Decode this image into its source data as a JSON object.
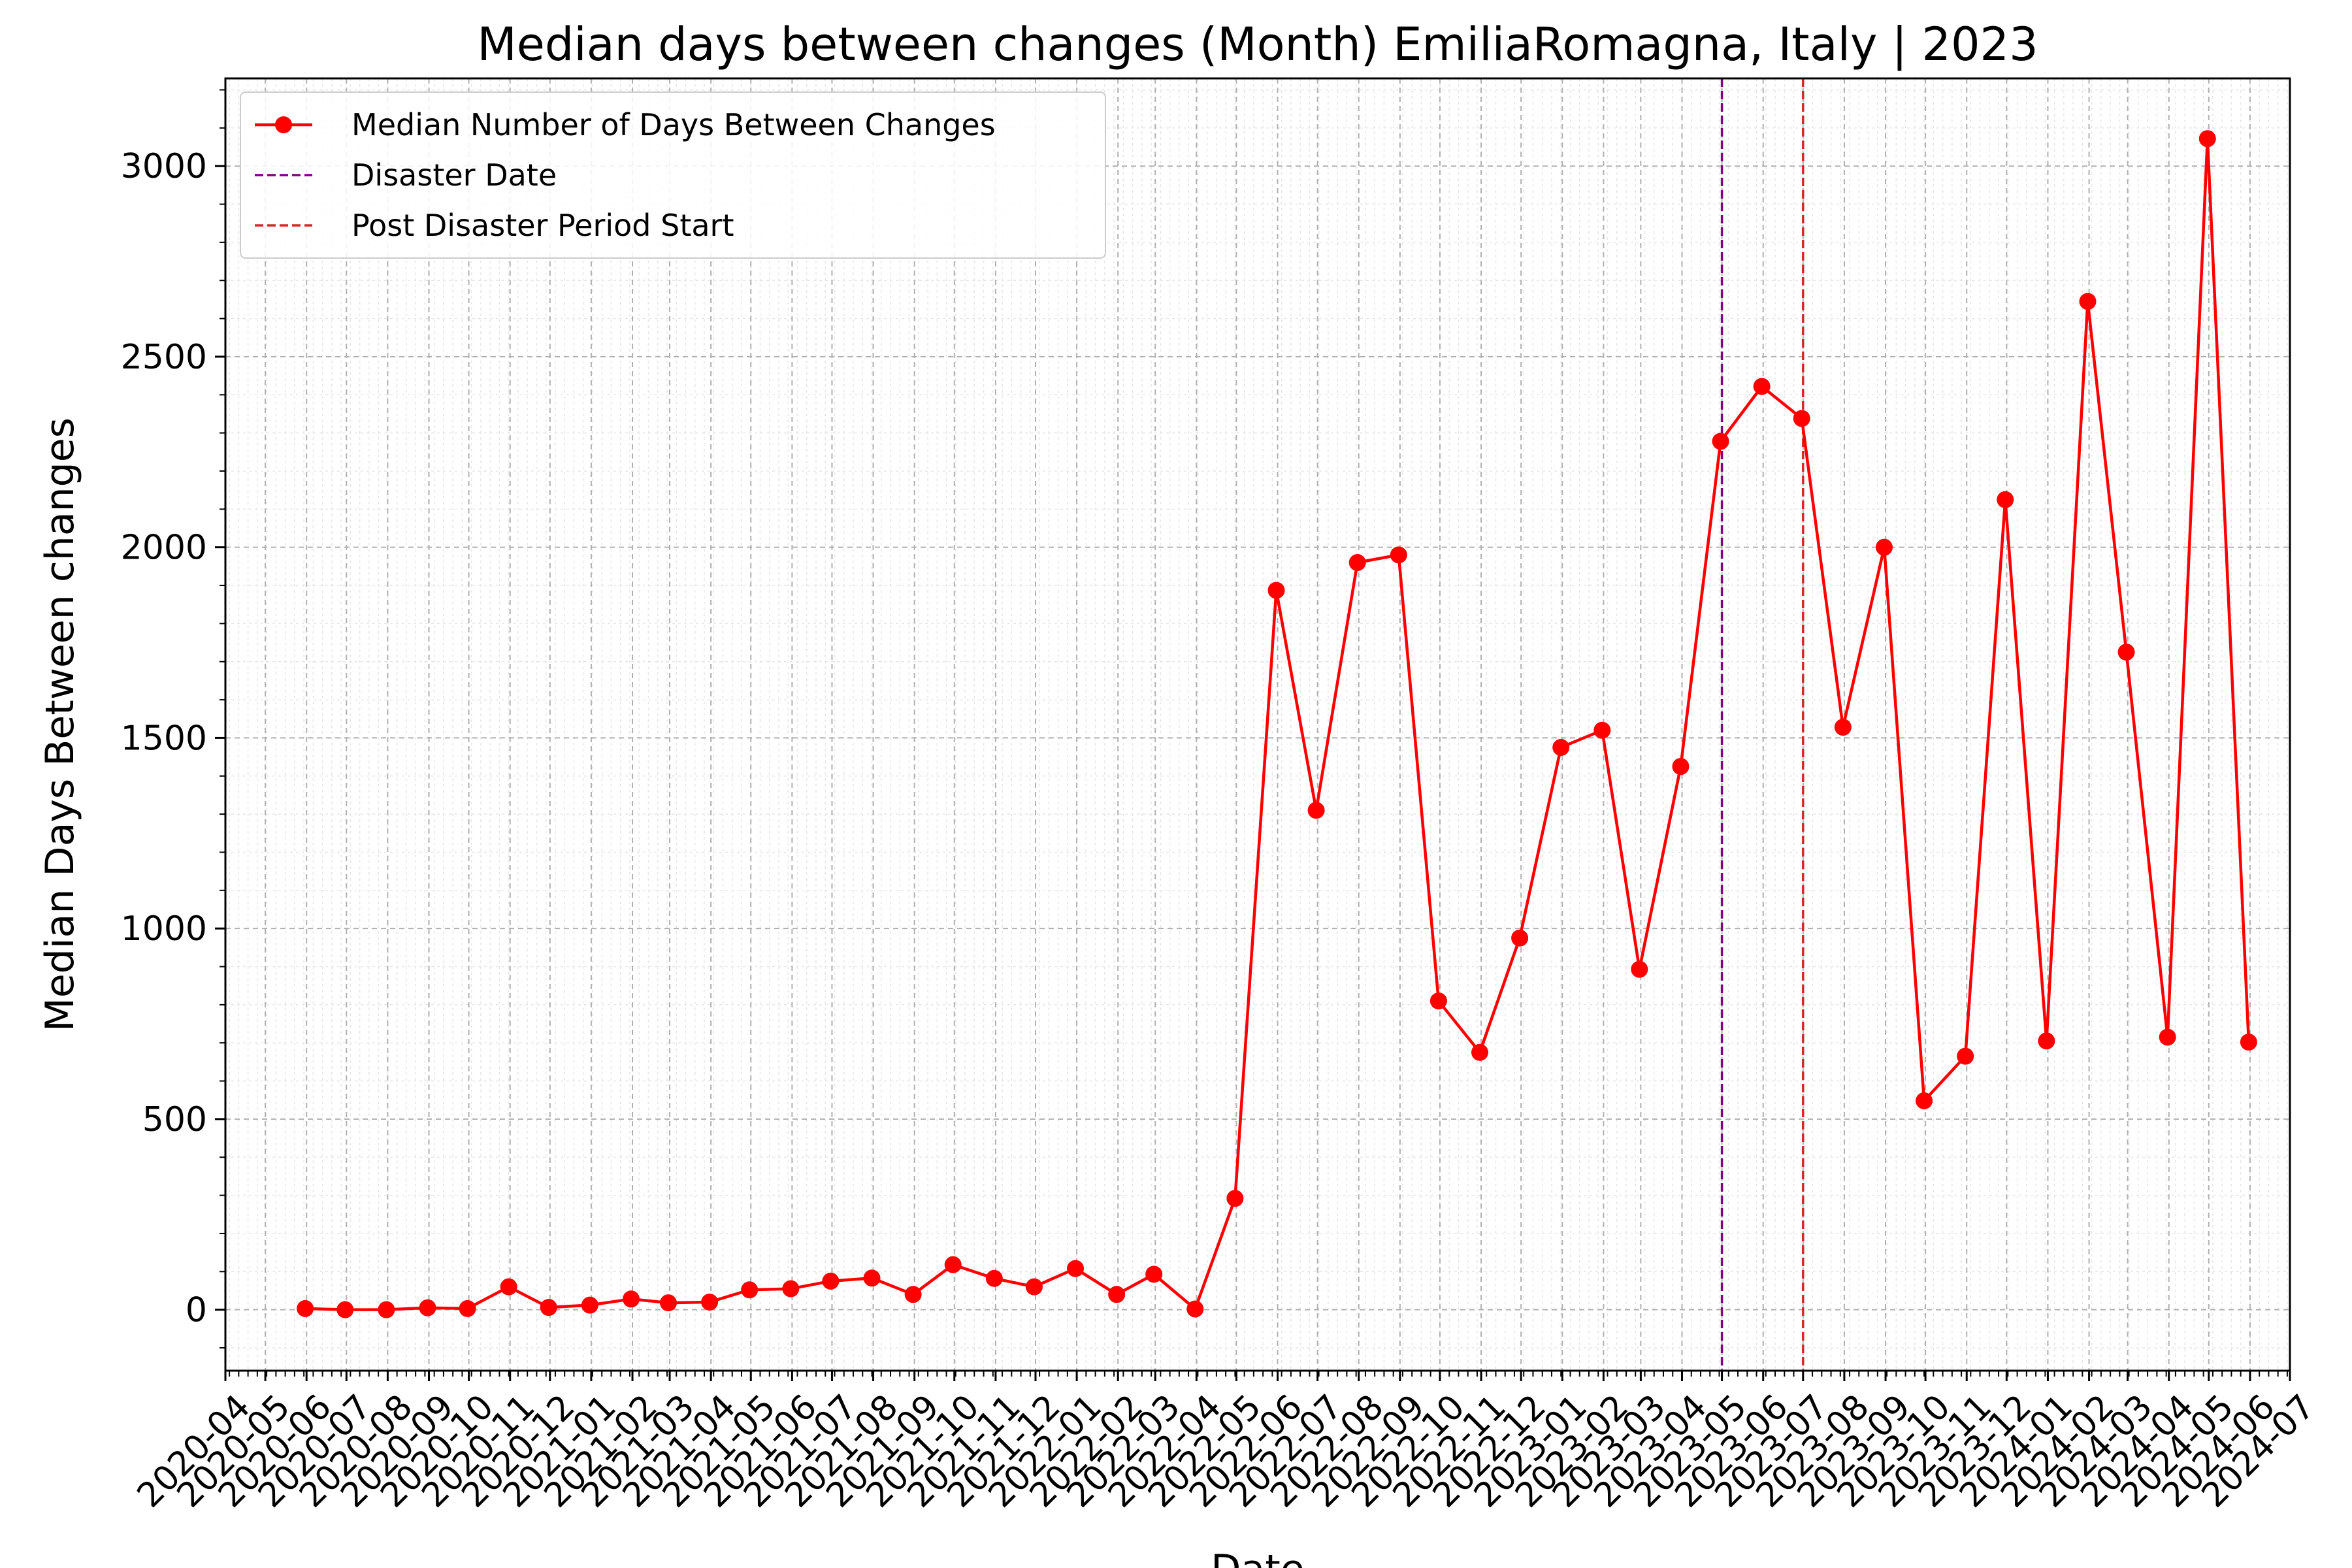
{
  "chart_data": {
    "type": "line",
    "title": "Median days between changes (Month) EmiliaRomagna, Italy | 2023",
    "xlabel": "Date",
    "ylabel": "Median Days Between changes",
    "ylim": [
      -160,
      3230
    ],
    "yticks": [
      0,
      500,
      1000,
      1500,
      2000,
      2500,
      3000
    ],
    "xlim": [
      "2020-04-01",
      "2024-07-01"
    ],
    "xticks": [
      "2020-04",
      "2020-05",
      "2020-06",
      "2020-07",
      "2020-08",
      "2020-09",
      "2020-10",
      "2020-11",
      "2020-12",
      "2021-01",
      "2021-02",
      "2021-03",
      "2021-04",
      "2021-05",
      "2021-06",
      "2021-07",
      "2021-08",
      "2021-09",
      "2021-10",
      "2021-11",
      "2021-12",
      "2022-01",
      "2022-02",
      "2022-03",
      "2022-04",
      "2022-05",
      "2022-06",
      "2022-07",
      "2022-08",
      "2022-09",
      "2022-10",
      "2022-11",
      "2022-12",
      "2023-01",
      "2023-02",
      "2023-03",
      "2023-04",
      "2023-05",
      "2023-06",
      "2023-07",
      "2023-08",
      "2023-09",
      "2023-10",
      "2023-11",
      "2023-12",
      "2024-01",
      "2024-02",
      "2024-03",
      "2024-04",
      "2024-05",
      "2024-06",
      "2024-07"
    ],
    "grid": true,
    "legend_position": "top-left",
    "series": [
      {
        "name": "Median Number of Days Between Changes",
        "color": "#ff0000",
        "x": [
          "2020-05-31",
          "2020-06-30",
          "2020-07-31",
          "2020-08-31",
          "2020-09-30",
          "2020-10-31",
          "2020-11-30",
          "2020-12-31",
          "2021-01-31",
          "2021-02-28",
          "2021-03-31",
          "2021-04-30",
          "2021-05-31",
          "2021-06-30",
          "2021-07-31",
          "2021-08-31",
          "2021-09-30",
          "2021-10-31",
          "2021-11-30",
          "2021-12-31",
          "2022-01-31",
          "2022-02-28",
          "2022-03-31",
          "2022-04-30",
          "2022-05-31",
          "2022-06-30",
          "2022-07-31",
          "2022-08-31",
          "2022-09-30",
          "2022-10-31",
          "2022-11-30",
          "2022-12-31",
          "2023-01-31",
          "2023-02-28",
          "2023-03-31",
          "2023-04-30",
          "2023-05-31",
          "2023-06-30",
          "2023-07-31",
          "2023-08-31",
          "2023-09-30",
          "2023-10-31",
          "2023-11-30",
          "2023-12-31",
          "2024-01-31",
          "2024-02-29",
          "2024-03-31",
          "2024-04-30",
          "2024-05-31"
        ],
        "values": [
          3,
          0,
          0,
          5,
          3,
          60,
          6,
          12,
          28,
          18,
          20,
          52,
          55,
          75,
          83,
          40,
          118,
          82,
          60,
          108,
          40,
          93,
          2,
          292,
          1887,
          1310,
          1960,
          1980,
          810,
          675,
          975,
          1475,
          1520,
          893,
          1425,
          2278,
          2422,
          2338,
          1528,
          2000,
          548,
          665,
          2125,
          705,
          2645,
          1725,
          715,
          3072,
          702
        ]
      },
      {
        "name": "Disaster Date",
        "style": "dashed",
        "color": "#800080",
        "x": "2023-05-01"
      },
      {
        "name": "Post Disaster Period Start",
        "style": "dashed",
        "color": "#d62728",
        "x": "2023-07-01"
      }
    ]
  }
}
